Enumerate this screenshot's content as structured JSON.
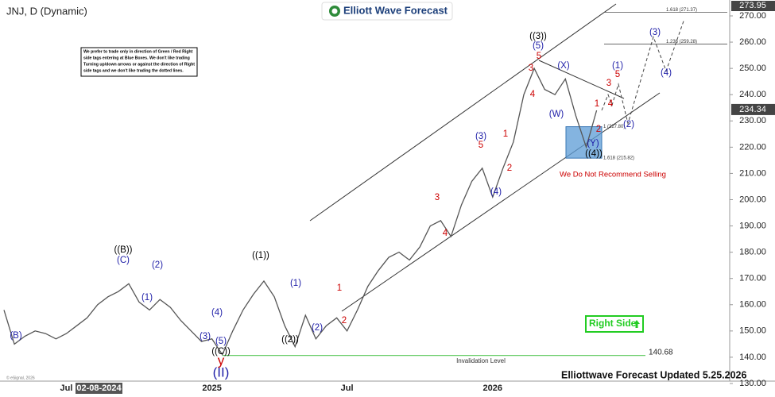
{
  "chart_data": {
    "type": "line",
    "title": "JNJ, D (Dynamic)",
    "logo": "Elliott Wave Forecast",
    "note_lines": [
      "We prefer to trade only in direction of Green / Red Right",
      "side tags entering at Blue Boxes. We don't like trading",
      "Turning up/down arrows or against the direction of Right",
      "side tags and we don't like trading the dotted lines."
    ],
    "categories": [
      null,
      null,
      null,
      null,
      null,
      null,
      "Jul",
      null,
      null,
      null,
      null,
      null,
      null,
      null,
      null,
      null,
      null,
      null,
      null,
      null,
      "2025",
      null,
      null,
      null,
      null,
      null,
      null,
      null,
      null,
      null,
      null,
      null,
      null,
      "Jul",
      null,
      null,
      null,
      null,
      null,
      null,
      null,
      null,
      null,
      null,
      null,
      null,
      null,
      "2026",
      null,
      null,
      null,
      null,
      null,
      null,
      null,
      null,
      null,
      null
    ],
    "series": [
      {
        "name": "JNJ",
        "color": "#555555",
        "values": [
          158,
          145,
          148,
          150,
          149,
          147,
          149,
          152,
          155,
          160,
          163,
          165,
          168,
          161,
          158,
          162,
          159,
          154,
          150,
          146,
          147,
          141,
          150,
          158,
          164,
          169,
          163,
          152,
          144,
          156,
          147,
          152,
          155,
          150,
          158,
          167,
          173,
          178,
          180,
          177,
          182,
          190,
          192,
          186,
          198,
          207,
          212,
          201,
          212,
          222,
          240,
          250,
          242,
          240,
          246,
          232,
          220,
          234
        ]
      }
    ],
    "projection": {
      "color": "#444444",
      "values": [
        234,
        240,
        236,
        244,
        229,
        262,
        249,
        268
      ]
    },
    "crosshair_date": "02-08-2024",
    "last_price": 234.34,
    "scale_high": 273.95,
    "ylim": [
      127,
      275
    ],
    "yticks": [
      {
        "value": 130,
        "label": "130.00"
      },
      {
        "value": 140,
        "label": "140.00"
      },
      {
        "value": 150,
        "label": "150.00"
      },
      {
        "value": 160,
        "label": "160.00"
      },
      {
        "value": 170,
        "label": "170.00"
      },
      {
        "value": 180,
        "label": "180.00"
      },
      {
        "value": 190,
        "label": "190.00"
      },
      {
        "value": 200,
        "label": "200.00"
      },
      {
        "value": 210,
        "label": "210.00"
      },
      {
        "value": 220,
        "label": "220.00"
      },
      {
        "value": 230,
        "label": "230.00"
      },
      {
        "value": 240,
        "label": "240.00"
      },
      {
        "value": 250,
        "label": "250.00"
      },
      {
        "value": 260,
        "label": "260.00"
      },
      {
        "value": 270,
        "label": "270.00"
      }
    ],
    "fib_levels": [
      {
        "value": 271.37,
        "label": "1.618 (271.37)"
      },
      {
        "value": 259.28,
        "label": "1.236 (259.28)"
      },
      {
        "value": 227.8,
        "label": "1 (227.80)"
      },
      {
        "value": 215.82,
        "label": "1.618 (215.82)"
      }
    ],
    "invalidation": {
      "value": 140.68,
      "label": "Invalidation Level",
      "color": "#66cc66"
    },
    "right_side": "Right Side",
    "warning": "We Do Not Recommend Selling",
    "footer": "Elliottwave Forecast Updated 5.25.2026",
    "copyright": "© eSignal, 2026",
    "annotations": [
      {
        "text": "(B)",
        "color": "#1f1fa8"
      },
      {
        "text": "((B))",
        "color": "#000000"
      },
      {
        "text": "(C)",
        "color": "#1f1fa8"
      },
      {
        "text": "(1)",
        "color": "#1f1fa8"
      },
      {
        "text": "(2)",
        "color": "#1f1fa8"
      },
      {
        "text": "(3)",
        "color": "#1f1fa8"
      },
      {
        "text": "(4)",
        "color": "#1f1fa8"
      },
      {
        "text": "(5)",
        "color": "#1f1fa8"
      },
      {
        "text": "((C))",
        "color": "#000000"
      },
      {
        "text": "y",
        "color": "#cc0000"
      },
      {
        "text": "(II)",
        "color": "#1f1fa8"
      },
      {
        "text": "((1))",
        "color": "#000000"
      },
      {
        "text": "((2))",
        "color": "#000000"
      },
      {
        "text": "(1)",
        "color": "#1f1fa8"
      },
      {
        "text": "(2)",
        "color": "#1f1fa8"
      },
      {
        "text": "1",
        "color": "#cc0000"
      },
      {
        "text": "2",
        "color": "#cc0000"
      },
      {
        "text": "3",
        "color": "#cc0000"
      },
      {
        "text": "4",
        "color": "#cc0000"
      },
      {
        "text": "(3)",
        "color": "#1f1fa8"
      },
      {
        "text": "5",
        "color": "#cc0000"
      },
      {
        "text": "(4)",
        "color": "#1f1fa8"
      },
      {
        "text": "1",
        "color": "#cc0000"
      },
      {
        "text": "2",
        "color": "#cc0000"
      },
      {
        "text": "3",
        "color": "#cc0000"
      },
      {
        "text": "4",
        "color": "#cc0000"
      },
      {
        "text": "5",
        "color": "#cc0000"
      },
      {
        "text": "(5)",
        "color": "#1f1fa8"
      },
      {
        "text": "((3))",
        "color": "#000000"
      },
      {
        "text": "(X)",
        "color": "#1f1fa8"
      },
      {
        "text": "(W)",
        "color": "#1f1fa8"
      },
      {
        "text": "(Y)",
        "color": "#1f1fa8"
      },
      {
        "text": "((4))",
        "color": "#000000"
      },
      {
        "text": "1",
        "color": "#cc0000"
      },
      {
        "text": "2",
        "color": "#cc0000"
      },
      {
        "text": "3",
        "color": "#cc0000"
      },
      {
        "text": "4",
        "color": "#cc0000"
      },
      {
        "text": "(1)",
        "color": "#1f1fa8"
      },
      {
        "text": "5",
        "color": "#cc0000"
      },
      {
        "text": "(2)",
        "color": "#1f1fa8"
      },
      {
        "text": "(3)",
        "color": "#1f1fa8"
      },
      {
        "text": "(4)",
        "color": "#1f1fa8"
      }
    ]
  }
}
